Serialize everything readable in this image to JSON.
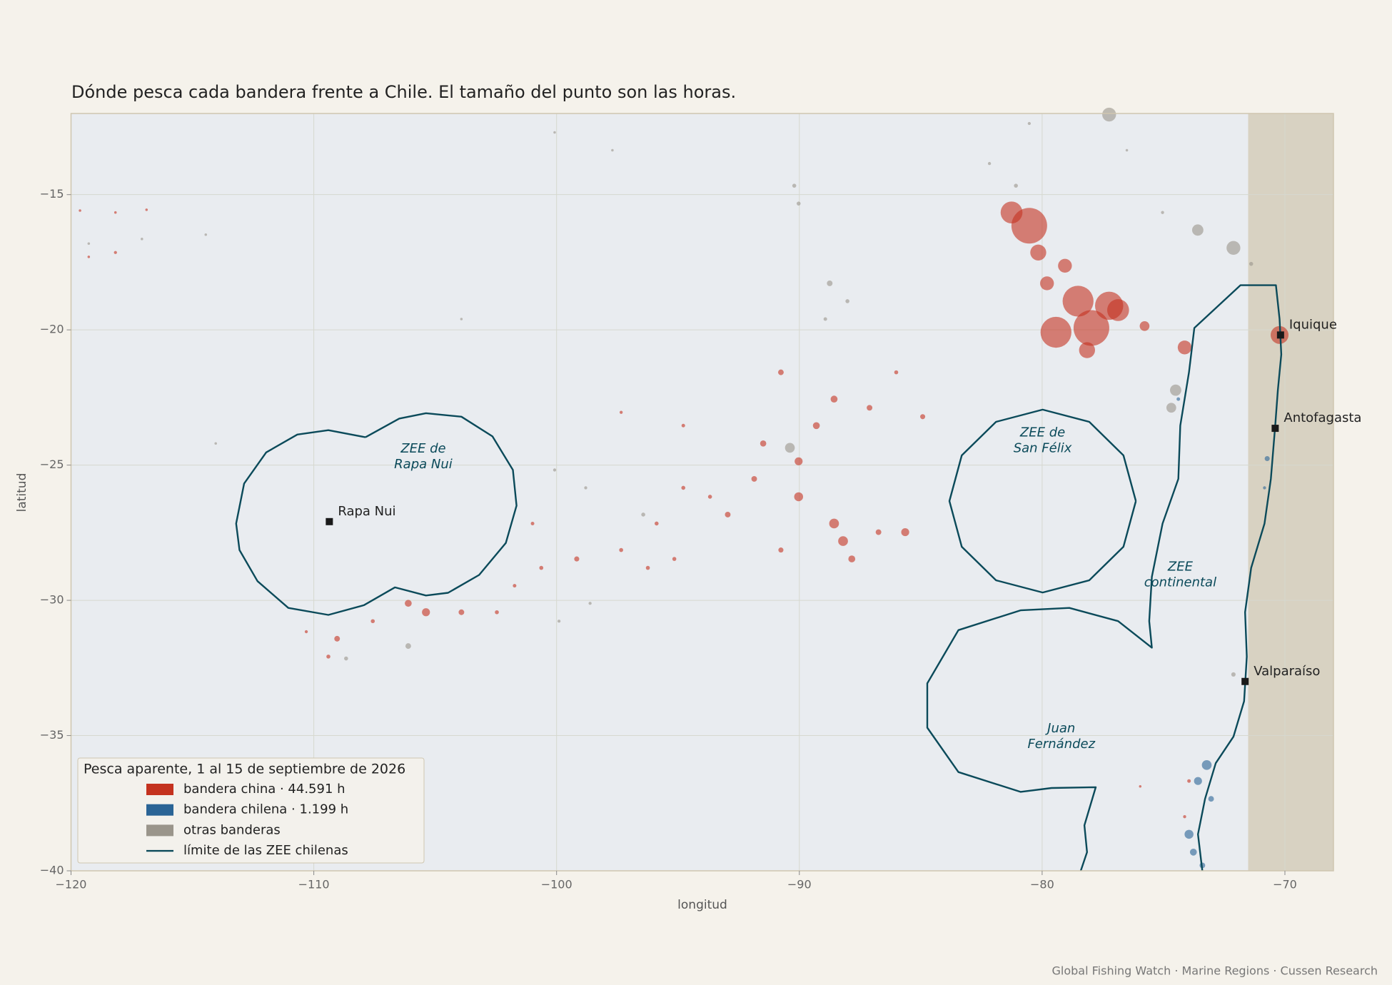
{
  "chart_data": {
    "type": "scatter",
    "title": "Dónde pesca cada bandera frente a Chile. El tamaño del punto son las horas.",
    "x_label": "longitud",
    "y_label": "latitud",
    "xlim": [
      -120,
      -68
    ],
    "ylim": [
      -40,
      -12
    ],
    "xticks": [
      {
        "value": -120,
        "label": "−120"
      },
      {
        "value": -110,
        "label": "−110"
      },
      {
        "value": -100,
        "label": "−100"
      },
      {
        "value": -90,
        "label": "−90"
      },
      {
        "value": -80,
        "label": "−80"
      },
      {
        "value": -70,
        "label": "−70"
      }
    ],
    "yticks": [
      {
        "value": -15,
        "label": "−15"
      },
      {
        "value": -20,
        "label": "−20"
      },
      {
        "value": -25,
        "label": "−25"
      },
      {
        "value": -30,
        "label": "−30"
      },
      {
        "value": -35,
        "label": "−35"
      },
      {
        "value": -40,
        "label": "−40"
      }
    ],
    "grid": true,
    "legend_title": "Pesca aparente, 1 al 15 de septiembre de 2026",
    "legend_position": "lower left",
    "series": [
      {
        "name": "bandera china · 44.591 h",
        "color": "#c4321f",
        "mark": "point",
        "x": [
          -80.53,
          -81.26,
          -80.16,
          -79.06,
          -78.52,
          -77.24,
          -79.43,
          -77.97,
          -76.87,
          -79.8,
          -78.15,
          -75.78,
          -74.13,
          -70.22,
          -90.76,
          -88.57,
          -87.11,
          -86.01,
          -84.92,
          -91.49,
          -90.03,
          -89.3,
          -91.86,
          -90.03,
          -88.57,
          -88.2,
          -87.84,
          -86.74,
          -85.64,
          -92.95,
          -93.68,
          -90.76,
          -94.78,
          -95.88,
          -95.15,
          -96.24,
          -97.34,
          -99.17,
          -100.63,
          -100.99,
          -101.73,
          -102.46,
          -103.92,
          -105.38,
          -106.11,
          -107.57,
          -109.04,
          -109.4,
          -110.31,
          -97.34,
          -94.78,
          -119.63,
          -118.17,
          -116.89,
          -119.27,
          -118.17,
          -73.95,
          -74.13,
          -75.96
        ],
        "values": [
          -16.15,
          -15.66,
          -17.14,
          -17.63,
          -18.94,
          -19.11,
          -20.09,
          -19.93,
          -19.27,
          -18.28,
          -20.75,
          -19.86,
          -20.65,
          -20.19,
          -21.57,
          -22.56,
          -22.88,
          -21.57,
          -23.21,
          -24.2,
          -24.86,
          -23.54,
          -25.51,
          -26.17,
          -27.16,
          -27.81,
          -28.47,
          -27.48,
          -27.48,
          -26.83,
          -26.17,
          -28.14,
          -25.84,
          -27.16,
          -28.47,
          -28.8,
          -28.14,
          -28.47,
          -28.8,
          -27.16,
          -29.46,
          -30.44,
          -30.44,
          -30.44,
          -30.11,
          -30.77,
          -31.42,
          -32.08,
          -31.16,
          -23.05,
          -23.54,
          -15.59,
          -15.66,
          -15.56,
          -17.3,
          -17.14,
          -36.68,
          -38.0,
          -36.88
        ],
        "sizes": [
          400,
          150,
          80,
          60,
          300,
          250,
          300,
          400,
          150,
          60,
          80,
          30,
          60,
          100,
          10,
          15,
          10,
          5,
          8,
          12,
          20,
          15,
          10,
          25,
          30,
          30,
          15,
          10,
          20,
          10,
          5,
          8,
          5,
          5,
          5,
          5,
          5,
          8,
          5,
          4,
          4,
          5,
          10,
          20,
          15,
          5,
          10,
          5,
          3,
          3,
          4,
          2,
          2,
          2,
          2,
          3,
          4,
          3,
          2
        ]
      },
      {
        "name": "bandera chilena · 1.199 h",
        "color": "#2a6496",
        "mark": "point",
        "x": [
          -73.22,
          -73.58,
          -73.95,
          -73.77,
          -73.4,
          -73.04,
          -70.73,
          -70.84,
          -74.39
        ],
        "values": [
          -36.09,
          -36.68,
          -38.65,
          -39.31,
          -39.8,
          -37.34,
          -24.76,
          -25.84,
          -22.56
        ],
        "sizes": [
          30,
          20,
          25,
          15,
          10,
          10,
          8,
          3,
          4
        ]
      },
      {
        "name": "otras banderas",
        "color": "#9a958b",
        "mark": "point",
        "x": [
          -77.24,
          -80.53,
          -81.08,
          -82.17,
          -76.51,
          -73.59,
          -72.12,
          -75.04,
          -71.39,
          -74.5,
          -74.68,
          -90.21,
          -90.03,
          -88.75,
          -88.02,
          -88.93,
          -100.08,
          -97.7,
          -103.92,
          -114.04,
          -100.08,
          -98.8,
          -99.9,
          -98.62,
          -106.11,
          -108.67,
          -90.39,
          -96.43,
          -72.12,
          -119.27,
          -117.08,
          -114.45
        ],
        "values": [
          -12.04,
          -12.37,
          -14.67,
          -13.85,
          -13.36,
          -16.31,
          -16.97,
          -15.66,
          -17.56,
          -22.23,
          -22.88,
          -14.67,
          -15.33,
          -18.28,
          -18.94,
          -19.6,
          -12.7,
          -13.36,
          -19.6,
          -24.2,
          -25.18,
          -25.84,
          -30.77,
          -30.11,
          -31.69,
          -32.15,
          -24.36,
          -26.83,
          -32.74,
          -16.81,
          -16.64,
          -16.48
        ],
        "sizes": [
          60,
          3,
          5,
          3,
          2,
          40,
          60,
          3,
          5,
          40,
          30,
          5,
          5,
          10,
          5,
          4,
          2,
          2,
          2,
          2,
          3,
          3,
          3,
          3,
          10,
          5,
          30,
          5,
          6,
          2,
          2,
          2
        ]
      },
      {
        "name": "límite de las ZEE chilenas",
        "color": "#0b4a5a",
        "mark": "line",
        "x": [
          -107.87,
          -106.48,
          -105.38,
          -103.92,
          -102.64,
          -101.8,
          -101.65,
          -102.09,
          -103.19,
          -104.47,
          -105.38,
          -106.66,
          -107.94,
          -109.4,
          -111.05,
          -112.32,
          -113.06,
          -113.2,
          -112.87,
          -111.96,
          -110.68,
          -109.4,
          -107.87,
          null,
          -76.14,
          -76.65,
          -78.06,
          -79.98,
          -81.9,
          -83.31,
          -83.82,
          -83.31,
          -81.9,
          -79.98,
          -78.06,
          -76.65,
          -76.14,
          null,
          -78.41,
          -78.15,
          -78.26,
          -77.79,
          -79.61,
          -80.89,
          -83.45,
          -84.73,
          -84.73,
          -83.45,
          -80.89,
          -78.88,
          -76.87,
          -75.48,
          -75.59,
          -75.48,
          -75.04,
          -74.39,
          -74.31,
          -73.95,
          -73.73,
          -71.83,
          -70.37,
          -70.22,
          -70.15,
          -70.29,
          -70.4,
          -70.58,
          -70.84,
          -71.39,
          -71.64,
          -71.57,
          -71.68,
          -72.12,
          -72.85,
          -73.29,
          -73.58,
          -73.4
        ],
        "values": [
          -23.97,
          -23.28,
          -23.08,
          -23.21,
          -23.94,
          -25.18,
          -26.5,
          -27.88,
          -29.06,
          -29.72,
          -29.82,
          -29.52,
          -30.18,
          -30.54,
          -30.28,
          -29.29,
          -28.14,
          -27.16,
          -25.68,
          -24.53,
          -23.87,
          -23.71,
          -23.97,
          null,
          -26.33,
          -24.64,
          -23.4,
          -22.95,
          -23.4,
          -24.64,
          -26.33,
          -28.02,
          -29.26,
          -29.71,
          -29.26,
          -28.02,
          -26.33,
          null,
          -40.0,
          -39.31,
          -38.32,
          -36.91,
          -36.94,
          -37.08,
          -36.35,
          -34.71,
          -33.07,
          -31.1,
          -30.37,
          -30.28,
          -30.77,
          -31.75,
          -30.77,
          -29.13,
          -27.16,
          -25.51,
          -23.54,
          -21.57,
          -19.93,
          -18.35,
          -18.35,
          -19.6,
          -20.91,
          -22.23,
          -23.54,
          -25.51,
          -27.16,
          -28.8,
          -30.44,
          -32.08,
          -33.73,
          -35.04,
          -36.02,
          -37.34,
          -38.65,
          -40.0
        ]
      }
    ],
    "cities": [
      {
        "name": "Iquique",
        "x": -70.18,
        "y": -20.19
      },
      {
        "name": "Antofagasta",
        "x": -70.4,
        "y": -23.64
      },
      {
        "name": "Valparaíso",
        "x": -71.64,
        "y": -33.0
      },
      {
        "name": "Rapa Nui",
        "x": -109.36,
        "y": -27.09
      }
    ],
    "zone_labels": [
      {
        "lines": [
          "ZEE de",
          "Rapa Nui"
        ],
        "x": -105.49,
        "y": -24.69
      },
      {
        "lines": [
          "ZEE de",
          "San Félix"
        ],
        "x": -79.98,
        "y": -24.1
      },
      {
        "lines": [
          "ZEE",
          "continental"
        ],
        "x": -74.31,
        "y": -29.06
      },
      {
        "lines": [
          "Juan",
          "Fernández"
        ],
        "x": -79.21,
        "y": -35.04
      }
    ],
    "source": "Global Fishing Watch · Marine Regions · Cussen Research"
  }
}
